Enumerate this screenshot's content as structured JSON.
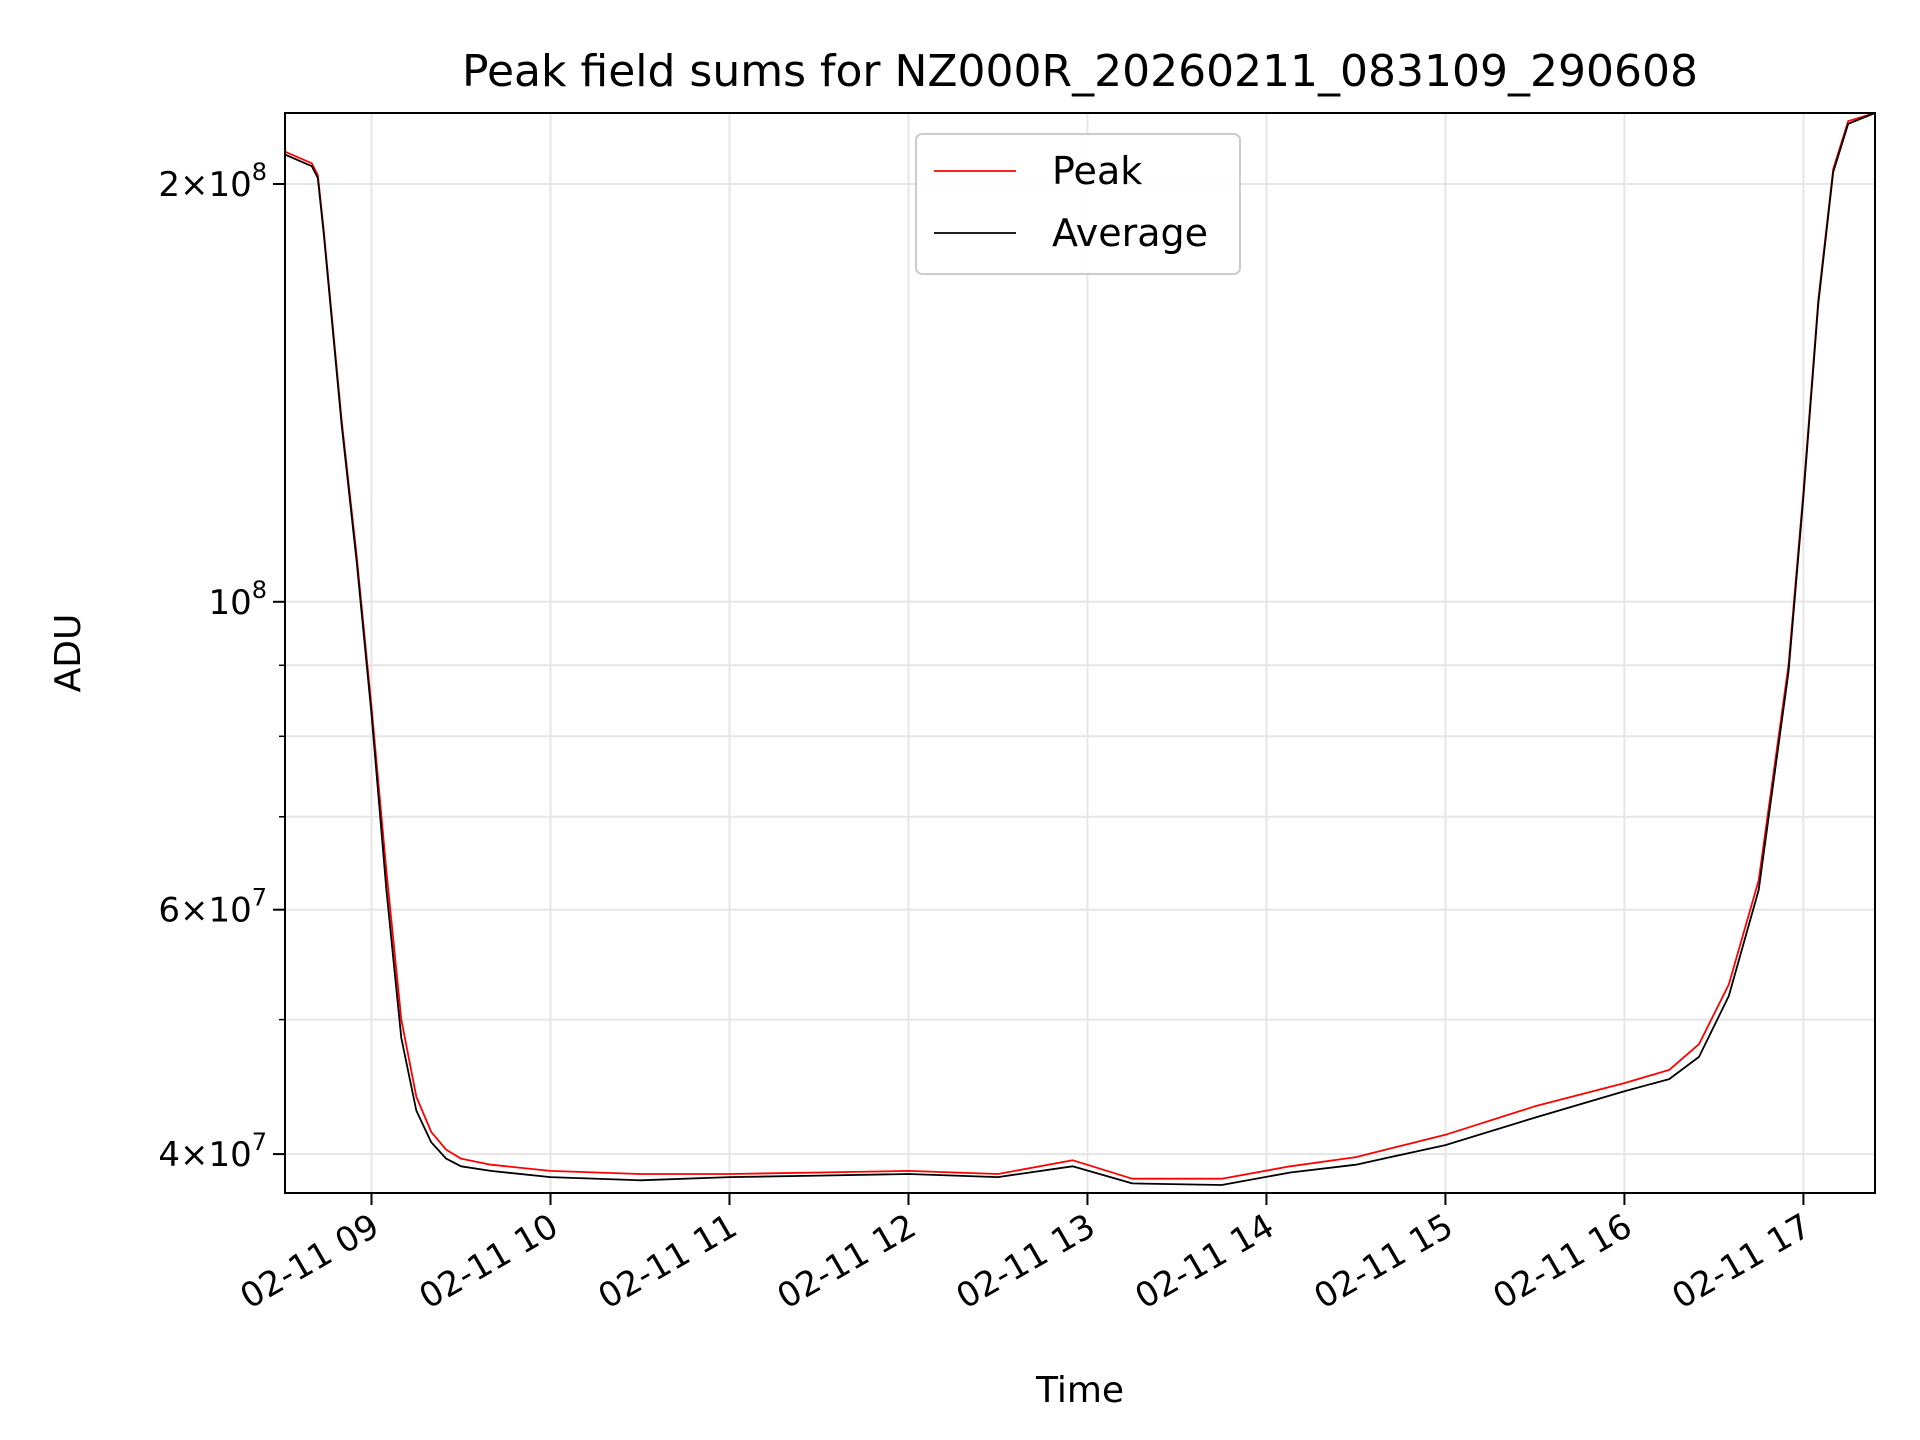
{
  "chart_data": {
    "type": "line",
    "title": "Peak field sums for NZ000R_20260211_083109_290608",
    "xlabel": "Time",
    "ylabel": "ADU",
    "y_scale": "log",
    "ylim": [
      37500000,
      225000000
    ],
    "xlim": [
      "2026-02-11 08:31",
      "2026-02-11 17:24"
    ],
    "x_ticks": [
      {
        "at": "2026-02-11 09:00",
        "label": "02-11 09"
      },
      {
        "at": "2026-02-11 10:00",
        "label": "02-11 10"
      },
      {
        "at": "2026-02-11 11:00",
        "label": "02-11 11"
      },
      {
        "at": "2026-02-11 12:00",
        "label": "02-11 12"
      },
      {
        "at": "2026-02-11 13:00",
        "label": "02-11 13"
      },
      {
        "at": "2026-02-11 14:00",
        "label": "02-11 14"
      },
      {
        "at": "2026-02-11 15:00",
        "label": "02-11 15"
      },
      {
        "at": "2026-02-11 16:00",
        "label": "02-11 16"
      },
      {
        "at": "2026-02-11 17:00",
        "label": "02-11 17"
      }
    ],
    "y_major_ticks": [
      {
        "value": 40000000,
        "mantissa": "4",
        "exp": "7"
      },
      {
        "value": 60000000,
        "mantissa": "6",
        "exp": "7"
      },
      {
        "value": 100000000,
        "mantissa": "",
        "exp": "8"
      },
      {
        "value": 200000000,
        "mantissa": "2",
        "exp": "8"
      }
    ],
    "y_minor_gridlines": [
      50000000,
      70000000,
      80000000,
      90000000
    ],
    "grid": true,
    "legend": "upper-center",
    "series": [
      {
        "name": "Peak",
        "color": "#ff0000",
        "x": [
          "2026-02-11 08:31",
          "2026-02-11 08:40",
          "2026-02-11 08:42",
          "2026-02-11 08:44",
          "2026-02-11 08:50",
          "2026-02-11 08:55",
          "2026-02-11 09:00",
          "2026-02-11 09:05",
          "2026-02-11 09:10",
          "2026-02-11 09:15",
          "2026-02-11 09:20",
          "2026-02-11 09:25",
          "2026-02-11 09:30",
          "2026-02-11 09:40",
          "2026-02-11 10:00",
          "2026-02-11 10:30",
          "2026-02-11 11:00",
          "2026-02-11 11:30",
          "2026-02-11 12:00",
          "2026-02-11 12:30",
          "2026-02-11 12:55",
          "2026-02-11 13:15",
          "2026-02-11 13:45",
          "2026-02-11 14:08",
          "2026-02-11 14:30",
          "2026-02-11 15:00",
          "2026-02-11 15:30",
          "2026-02-11 16:00",
          "2026-02-11 16:15",
          "2026-02-11 16:25",
          "2026-02-11 16:35",
          "2026-02-11 16:45",
          "2026-02-11 16:55",
          "2026-02-11 17:00",
          "2026-02-11 17:05",
          "2026-02-11 17:10",
          "2026-02-11 17:15",
          "2026-02-11 17:24"
        ],
        "y": [
          211000000,
          207000000,
          203000000,
          185000000,
          135000000,
          108000000,
          84000000,
          64000000,
          50000000,
          44000000,
          41500000,
          40300000,
          39700000,
          39300000,
          38900000,
          38700000,
          38700000,
          38800000,
          38900000,
          38700000,
          39600000,
          38400000,
          38400000,
          39200000,
          39800000,
          41300000,
          43300000,
          45000000,
          46000000,
          48000000,
          53000000,
          63000000,
          90000000,
          120000000,
          165000000,
          205000000,
          222000000,
          225000000
        ]
      },
      {
        "name": "Average",
        "color": "#000000",
        "x": [
          "2026-02-11 08:31",
          "2026-02-11 08:40",
          "2026-02-11 08:42",
          "2026-02-11 08:44",
          "2026-02-11 08:50",
          "2026-02-11 08:55",
          "2026-02-11 09:00",
          "2026-02-11 09:05",
          "2026-02-11 09:10",
          "2026-02-11 09:15",
          "2026-02-11 09:20",
          "2026-02-11 09:25",
          "2026-02-11 09:30",
          "2026-02-11 09:40",
          "2026-02-11 10:00",
          "2026-02-11 10:30",
          "2026-02-11 11:00",
          "2026-02-11 11:30",
          "2026-02-11 12:00",
          "2026-02-11 12:30",
          "2026-02-11 12:55",
          "2026-02-11 13:15",
          "2026-02-11 13:45",
          "2026-02-11 14:08",
          "2026-02-11 14:30",
          "2026-02-11 15:00",
          "2026-02-11 15:30",
          "2026-02-11 16:00",
          "2026-02-11 16:15",
          "2026-02-11 16:25",
          "2026-02-11 16:35",
          "2026-02-11 16:45",
          "2026-02-11 16:55",
          "2026-02-11 17:00",
          "2026-02-11 17:05",
          "2026-02-11 17:10",
          "2026-02-11 17:15",
          "2026-02-11 17:24"
        ],
        "y": [
          210000000,
          206000000,
          202000000,
          184000000,
          134000000,
          107000000,
          83000000,
          62000000,
          48500000,
          43000000,
          40800000,
          39700000,
          39200000,
          38900000,
          38500000,
          38300000,
          38500000,
          38600000,
          38700000,
          38500000,
          39200000,
          38100000,
          38000000,
          38800000,
          39300000,
          40600000,
          42500000,
          44400000,
          45300000,
          47000000,
          52000000,
          62000000,
          89000000,
          119000000,
          164000000,
          204000000,
          221000000,
          225000000
        ]
      }
    ]
  }
}
